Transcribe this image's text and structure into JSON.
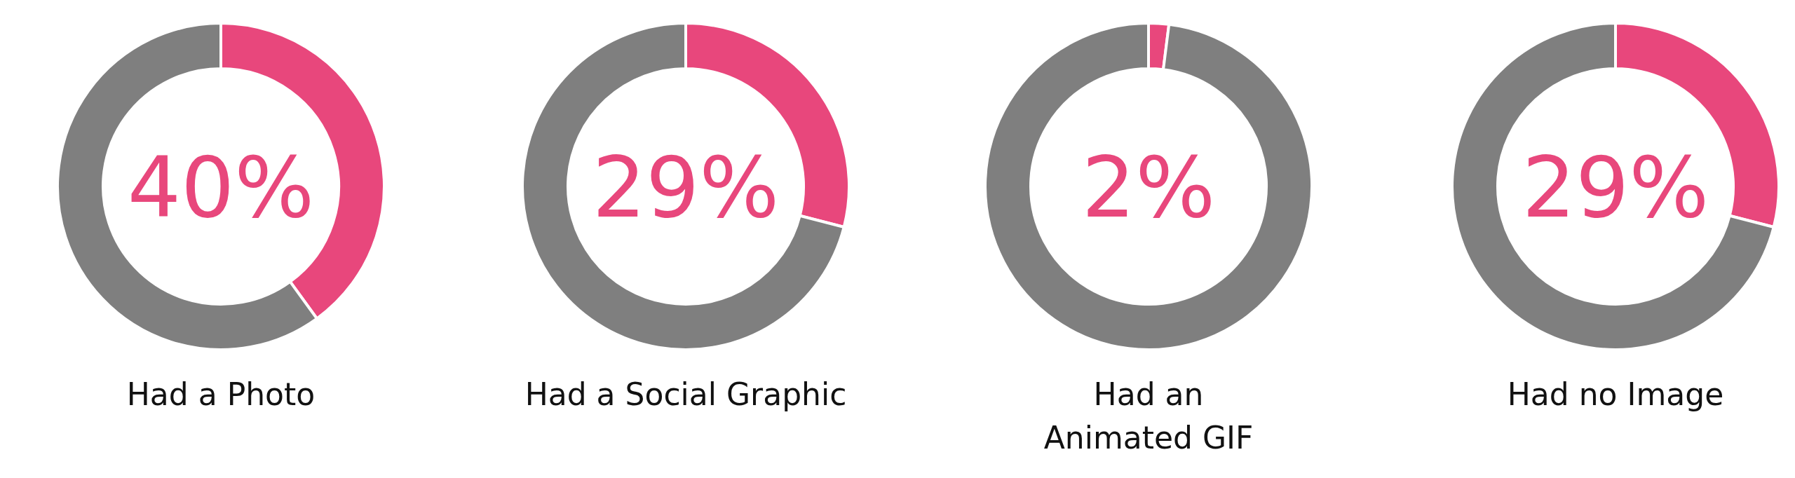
{
  "chart_data": [
    {
      "type": "donut",
      "title": "Had a Photo",
      "categories": [
        null,
        null
      ],
      "values": [
        40,
        60
      ],
      "colors": [
        "#e8477c",
        "#7f7f7f"
      ],
      "annotations": [
        "40%"
      ]
    },
    {
      "type": "donut",
      "title": "Had a Social Graphic",
      "categories": [
        null,
        null
      ],
      "values": [
        29,
        71
      ],
      "colors": [
        "#e8477c",
        "#7f7f7f"
      ],
      "annotations": [
        "29%"
      ]
    },
    {
      "type": "donut",
      "title": "Had an\nAnimated GIF",
      "categories": [
        null,
        null
      ],
      "values": [
        2,
        98
      ],
      "colors": [
        "#e8477c",
        "#7f7f7f"
      ],
      "annotations": [
        "2%"
      ]
    },
    {
      "type": "donut",
      "title": "Had no Image",
      "categories": [
        null,
        null
      ],
      "values": [
        29,
        71
      ],
      "colors": [
        "#e8477c",
        "#7f7f7f"
      ],
      "annotations": [
        "29%"
      ]
    }
  ]
}
